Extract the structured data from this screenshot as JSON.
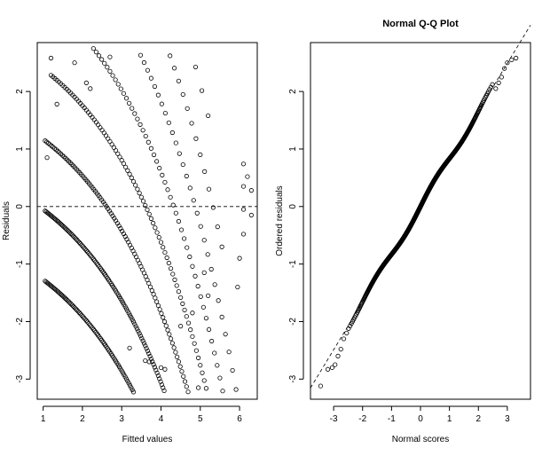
{
  "chart_data": [
    {
      "type": "scatter",
      "title": "",
      "xlabel": "Fitted values",
      "ylabel": "Residuals",
      "xlim": [
        0.85,
        6.45
      ],
      "ylim": [
        -3.35,
        2.85
      ],
      "xticks": [
        1,
        2,
        3,
        4,
        5,
        6
      ],
      "yticks": [
        -3,
        -2,
        -1,
        0,
        1,
        2
      ],
      "reference_line": {
        "type": "horizontal",
        "y": 0,
        "style": "dashed"
      },
      "bands": [
        {
          "offset": -1,
          "x_start": 1.05,
          "x_end": 4.05,
          "step": 0.03
        },
        {
          "offset": 0,
          "x_start": 1.05,
          "x_end": 5.05,
          "step": 0.03
        },
        {
          "offset": 1,
          "x_start": 1.05,
          "x_end": 6.25,
          "step": 0.04
        },
        {
          "offset": 2,
          "x_start": 1.2,
          "x_end": 6.3,
          "step": 0.05
        },
        {
          "offset": 3,
          "x_start": 1.3,
          "x_end": 6.2,
          "step": 0.07
        },
        {
          "offset": 4,
          "x_start": 1.5,
          "x_end": 6.1,
          "step": 0.09
        },
        {
          "offset": 5,
          "x_start": 1.7,
          "x_end": 5.6,
          "step": 0.11
        },
        {
          "offset": 6,
          "x_start": 2.0,
          "x_end": 5.3,
          "step": 0.16
        }
      ],
      "residual_formula": "y = 1.22 * (offset + 1 - exp(0.405 * (x - 0.9)))",
      "series": [
        {
          "values": [
            [
              1.1,
              0.85
            ],
            [
              1.2,
              2.58
            ],
            [
              1.8,
              2.5
            ],
            [
              2.7,
              2.6
            ],
            [
              2.1,
              2.15
            ],
            [
              2.2,
              2.05
            ],
            [
              3.2,
              -2.46
            ],
            [
              3.6,
              -2.68
            ],
            [
              3.7,
              -2.7
            ],
            [
              4.0,
              -2.8
            ],
            [
              4.1,
              -2.83
            ],
            [
              4.95,
              -3.15
            ],
            [
              4.5,
              -2.08
            ],
            [
              4.8,
              -1.85
            ],
            [
              5.1,
              -1.15
            ],
            [
              5.2,
              -1.55
            ],
            [
              5.95,
              -1.4
            ],
            [
              6.1,
              0.74
            ],
            [
              6.1,
              0.35
            ],
            [
              6.1,
              -0.05
            ],
            [
              6.1,
              -0.48
            ],
            [
              6.2,
              0.52
            ],
            [
              6.3,
              0.28
            ],
            [
              6.3,
              -0.15
            ],
            [
              6.0,
              -0.9
            ],
            [
              1.35,
              1.78
            ]
          ]
        }
      ]
    },
    {
      "type": "scatter",
      "title": "Normal Q-Q Plot",
      "xlabel": "Normal scores",
      "ylabel": "Ordered residuals",
      "xlim": [
        -3.8,
        3.8
      ],
      "ylim": [
        -3.35,
        2.85
      ],
      "xticks": [
        -3,
        -2,
        -1,
        0,
        1,
        2,
        3
      ],
      "yticks": [
        -3,
        -2,
        -1,
        0,
        1,
        2
      ],
      "reference_line": {
        "type": "line",
        "slope": 0.83,
        "intercept": 0,
        "style": "dashed"
      },
      "quantile_points": 1000,
      "sample_points": [
        [
          -3.45,
          -3.12
        ],
        [
          -3.2,
          -2.83
        ],
        [
          -3.05,
          -2.8
        ],
        [
          -2.95,
          -2.75
        ],
        [
          -2.85,
          -2.6
        ],
        [
          -2.75,
          -2.48
        ],
        [
          -2.65,
          -2.3
        ],
        [
          -2.55,
          -2.2
        ],
        [
          2.6,
          2.05
        ],
        [
          2.7,
          2.15
        ],
        [
          2.8,
          2.25
        ],
        [
          2.9,
          2.4
        ],
        [
          3.0,
          2.5
        ],
        [
          3.15,
          2.55
        ],
        [
          3.3,
          2.58
        ]
      ]
    }
  ]
}
